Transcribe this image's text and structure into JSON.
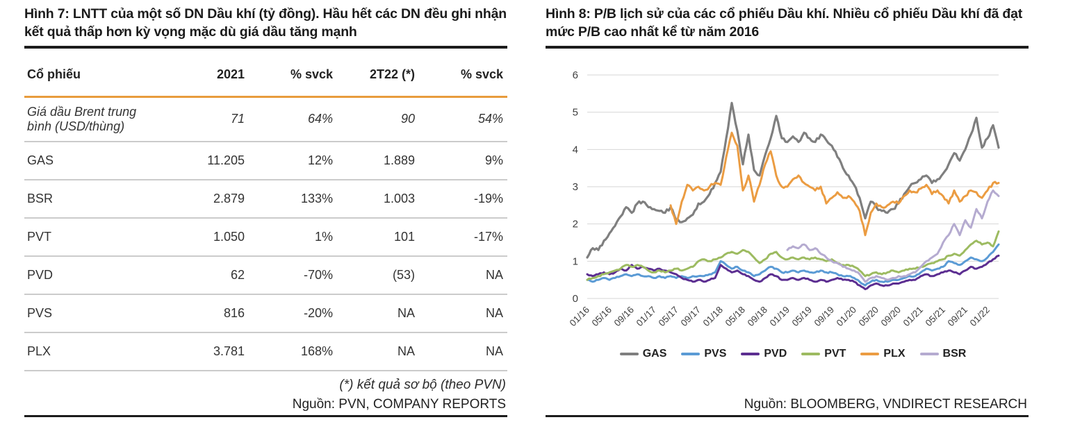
{
  "figure7": {
    "title": "Hình 7: LNTT của một số DN Dầu khí (tỷ đồng). Hầu hết các DN đều ghi nhận kết quả thấp hơn kỳ vọng mặc dù giá dầu tăng mạnh",
    "accent_color": "#E89B3C",
    "table": {
      "columns": [
        "Cổ phiếu",
        "2021",
        "% svck",
        "2T22 (*)",
        "% svck"
      ],
      "oil_row": {
        "label": "Giá dầu Brent trung bình (USD/thùng)",
        "values": [
          "71",
          "64%",
          "90",
          "54%"
        ]
      },
      "rows": [
        {
          "label": "GAS",
          "values": [
            "11.205",
            "12%",
            "1.889",
            "9%"
          ]
        },
        {
          "label": "BSR",
          "values": [
            "2.879",
            "133%",
            "1.003",
            "-19%"
          ]
        },
        {
          "label": "PVT",
          "values": [
            "1.050",
            "1%",
            "101",
            "-17%"
          ]
        },
        {
          "label": "PVD",
          "values": [
            "62",
            "-70%",
            "(53)",
            "NA"
          ]
        },
        {
          "label": "PVS",
          "values": [
            "816",
            "-20%",
            "NA",
            "NA"
          ]
        },
        {
          "label": "PLX",
          "values": [
            "3.781",
            "168%",
            "NA",
            "NA"
          ]
        }
      ]
    },
    "footnote": "(*) kết quả sơ bộ (theo PVN)",
    "source": "Nguồn: PVN, COMPANY REPORTS"
  },
  "figure8": {
    "title": "Hình 8: P/B lịch sử của các cổ phiếu Dầu khí. Nhiều cổ phiếu Dầu khí đã đạt mức P/B cao nhất kể từ năm 2016",
    "source": "Nguồn: BLOOMBERG, VNDIRECT RESEARCH"
  },
  "chart_data": {
    "type": "line",
    "title": "",
    "xlabel": "",
    "ylabel": "",
    "ylim": [
      0,
      6
    ],
    "yticks": [
      0,
      1,
      2,
      3,
      4,
      5,
      6
    ],
    "grid": true,
    "legend_position": "bottom",
    "x_start": "01/16",
    "x_frequency": "monthly",
    "x_tick_every": 4,
    "x_tick_labels": [
      "01/16",
      "05/16",
      "09/16",
      "01/17",
      "05/17",
      "09/17",
      "01/18",
      "05/18",
      "09/18",
      "01/19",
      "05/19",
      "09/19",
      "01/20",
      "05/20",
      "09/20",
      "01/21",
      "05/21",
      "09/21",
      "01/22"
    ],
    "series": [
      {
        "name": "GAS",
        "color": "#7F7F7F",
        "values": [
          1.1,
          1.35,
          1.3,
          1.55,
          1.75,
          1.95,
          2.2,
          2.45,
          2.3,
          2.55,
          2.6,
          2.45,
          2.4,
          2.35,
          2.3,
          2.45,
          2.1,
          2.05,
          2.15,
          2.25,
          2.55,
          2.6,
          2.8,
          3.1,
          3.4,
          4.3,
          5.25,
          4.5,
          3.6,
          4.4,
          3.45,
          3.3,
          3.85,
          4.3,
          4.9,
          4.3,
          4.2,
          4.35,
          4.2,
          4.45,
          4.3,
          4.2,
          4.4,
          4.25,
          4.1,
          3.8,
          3.5,
          3.3,
          3.05,
          2.7,
          2.15,
          2.6,
          2.45,
          2.35,
          2.3,
          2.4,
          2.55,
          2.8,
          3.0,
          3.1,
          3.2,
          3.3,
          3.1,
          3.2,
          3.35,
          3.6,
          3.9,
          3.7,
          4.0,
          4.4,
          4.85,
          4.05,
          4.3,
          4.65,
          4.05
        ]
      },
      {
        "name": "PVS",
        "color": "#5B9BD5",
        "values": [
          0.5,
          0.45,
          0.5,
          0.55,
          0.5,
          0.55,
          0.6,
          0.65,
          0.6,
          0.65,
          0.6,
          0.6,
          0.55,
          0.6,
          0.55,
          0.6,
          0.55,
          0.6,
          0.55,
          0.6,
          0.6,
          0.6,
          0.65,
          0.7,
          1.0,
          0.9,
          0.8,
          0.85,
          0.75,
          0.7,
          0.6,
          0.65,
          0.75,
          0.85,
          0.8,
          0.7,
          0.7,
          0.75,
          0.7,
          0.75,
          0.7,
          0.7,
          0.75,
          0.7,
          0.7,
          0.65,
          0.6,
          0.6,
          0.55,
          0.45,
          0.35,
          0.45,
          0.5,
          0.45,
          0.45,
          0.5,
          0.5,
          0.55,
          0.6,
          0.6,
          0.7,
          0.8,
          0.75,
          0.8,
          0.85,
          1.0,
          0.95,
          0.9,
          1.0,
          1.1,
          1.05,
          1.0,
          1.1,
          1.25,
          1.45
        ]
      },
      {
        "name": "PVD",
        "color": "#5C2E91",
        "values": [
          0.65,
          0.6,
          0.65,
          0.7,
          0.65,
          0.7,
          0.8,
          0.75,
          0.9,
          0.8,
          0.85,
          0.8,
          0.75,
          0.8,
          0.75,
          0.7,
          0.65,
          0.55,
          0.5,
          0.45,
          0.5,
          0.45,
          0.5,
          0.55,
          0.9,
          0.8,
          0.7,
          0.75,
          0.65,
          0.6,
          0.5,
          0.45,
          0.55,
          0.65,
          0.6,
          0.5,
          0.5,
          0.55,
          0.5,
          0.55,
          0.5,
          0.45,
          0.5,
          0.45,
          0.5,
          0.55,
          0.5,
          0.5,
          0.45,
          0.35,
          0.25,
          0.35,
          0.4,
          0.35,
          0.35,
          0.4,
          0.4,
          0.45,
          0.5,
          0.5,
          0.6,
          0.65,
          0.6,
          0.65,
          0.7,
          0.75,
          0.7,
          0.65,
          0.75,
          0.85,
          0.8,
          0.85,
          0.95,
          1.05,
          1.15
        ]
      },
      {
        "name": "PVT",
        "color": "#9DBB61",
        "values": [
          0.5,
          0.55,
          0.6,
          0.65,
          0.7,
          0.75,
          0.8,
          0.9,
          0.85,
          0.9,
          0.85,
          0.75,
          0.7,
          0.75,
          0.7,
          0.75,
          0.8,
          0.75,
          0.8,
          0.85,
          1.0,
          1.05,
          1.0,
          1.05,
          1.1,
          1.2,
          1.25,
          1.2,
          1.3,
          1.25,
          1.1,
          0.95,
          1.05,
          1.2,
          1.25,
          1.1,
          1.05,
          1.1,
          1.05,
          1.1,
          1.05,
          1.1,
          1.05,
          1.0,
          1.05,
          0.95,
          0.9,
          0.9,
          0.85,
          0.75,
          0.6,
          0.65,
          0.7,
          0.65,
          0.7,
          0.75,
          0.7,
          0.75,
          0.8,
          0.8,
          0.85,
          0.9,
          0.95,
          1.0,
          1.05,
          1.15,
          1.2,
          1.15,
          1.3,
          1.45,
          1.55,
          1.45,
          1.5,
          1.4,
          1.8
        ]
      },
      {
        "name": "PLX",
        "color": "#EB9C42",
        "values": [
          null,
          null,
          null,
          null,
          null,
          null,
          null,
          null,
          null,
          null,
          null,
          null,
          null,
          null,
          null,
          2.5,
          2.0,
          2.6,
          3.05,
          2.9,
          3.0,
          2.9,
          3.0,
          3.1,
          3.05,
          3.8,
          4.45,
          4.1,
          2.9,
          3.3,
          2.6,
          3.05,
          3.6,
          3.95,
          3.3,
          3.0,
          3.0,
          3.2,
          3.3,
          3.1,
          3.0,
          2.9,
          3.0,
          2.55,
          2.7,
          2.85,
          2.7,
          2.75,
          2.6,
          2.35,
          1.7,
          2.3,
          2.55,
          2.45,
          2.5,
          2.6,
          2.55,
          2.75,
          2.9,
          2.85,
          2.95,
          3.05,
          2.8,
          2.9,
          2.75,
          2.55,
          2.9,
          2.6,
          2.75,
          2.9,
          2.85,
          2.7,
          2.9,
          3.1,
          3.1
        ]
      },
      {
        "name": "BSR",
        "color": "#B5ABD0",
        "values": [
          null,
          null,
          null,
          null,
          null,
          null,
          null,
          null,
          null,
          null,
          null,
          null,
          null,
          null,
          null,
          null,
          null,
          null,
          null,
          null,
          null,
          null,
          null,
          null,
          null,
          null,
          null,
          null,
          null,
          null,
          null,
          null,
          null,
          null,
          null,
          null,
          1.3,
          1.4,
          1.35,
          1.45,
          1.3,
          1.35,
          1.2,
          1.1,
          1.0,
          0.95,
          0.85,
          0.8,
          0.75,
          0.65,
          0.45,
          0.55,
          0.6,
          0.55,
          0.5,
          0.55,
          0.6,
          0.6,
          0.65,
          0.7,
          0.85,
          1.0,
          1.1,
          1.2,
          1.5,
          1.7,
          2.0,
          1.7,
          2.1,
          1.9,
          2.4,
          2.15,
          2.6,
          2.9,
          2.75
        ]
      }
    ]
  }
}
